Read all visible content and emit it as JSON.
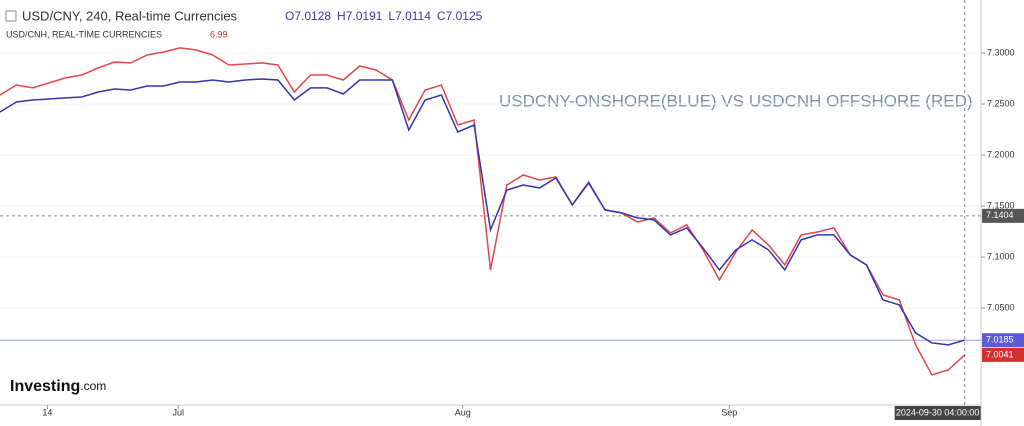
{
  "chart_data": {
    "type": "line",
    "title": "USDCNY-ONSHORE(BLUE) VS USDCNH OFFSHORE (RED)",
    "ohlc": [
      "O7.0128",
      "H7.0191",
      "L7.0114",
      "C7.0125"
    ],
    "secondary_value": "6.99",
    "logo": "Investing",
    "logo_suffix": ".com",
    "crosshair": {
      "x_label": "2024-09-30 04:00:00",
      "y": {
        "value": 7.1404,
        "label": "7.1404"
      }
    },
    "x": [
      0,
      1,
      2,
      3,
      4,
      5,
      6,
      7,
      8,
      9,
      10,
      11,
      12,
      13,
      14,
      15,
      16,
      17,
      18,
      19,
      20,
      21,
      22,
      23,
      24,
      25,
      26,
      27,
      28,
      29,
      30,
      31,
      32,
      33,
      34,
      35,
      36,
      37,
      38,
      39,
      40,
      41,
      42,
      43,
      44,
      45,
      46,
      47,
      48,
      49,
      50,
      51,
      52,
      53,
      54,
      55,
      56,
      57,
      58,
      59
    ],
    "xlim": [
      0,
      60
    ],
    "xticks": [
      {
        "value": 2.9,
        "label": "14"
      },
      {
        "value": 10.9,
        "label": "Jul"
      },
      {
        "value": 28.3,
        "label": "Aug"
      },
      {
        "value": 44.6,
        "label": "Sep"
      }
    ],
    "ylim": [
      6.955,
      7.352
    ],
    "yticks": [
      {
        "value": 7.05,
        "label": "7.0500"
      },
      {
        "value": 7.1,
        "label": "7.1000"
      },
      {
        "value": 7.15,
        "label": "7.1500"
      },
      {
        "value": 7.2,
        "label": "7.2000"
      },
      {
        "value": 7.25,
        "label": "7.2500"
      },
      {
        "value": 7.3,
        "label": "7.3000"
      }
    ],
    "series": [
      {
        "name": "USD/CNY, 240, Real-time Currencies",
        "color": "#3434b0",
        "last_label": "7.0185",
        "values": [
          7.2422,
          7.252,
          7.254,
          7.255,
          7.256,
          7.2569,
          7.2618,
          7.2648,
          7.2638,
          7.2677,
          7.2677,
          7.2716,
          7.2716,
          7.2736,
          7.2716,
          7.2736,
          7.2746,
          7.2736,
          7.254,
          7.2658,
          7.2658,
          7.2599,
          7.2736,
          7.2736,
          7.2736,
          7.2246,
          7.254,
          7.2589,
          7.2226,
          7.2295,
          7.1266,
          7.1658,
          7.1707,
          7.1678,
          7.1776,
          7.1511,
          7.1727,
          7.1462,
          7.1433,
          7.1384,
          7.1364,
          7.1217,
          7.1286,
          7.109,
          7.0874,
          7.107,
          7.1168,
          7.107,
          7.0874,
          7.1168,
          7.1217,
          7.1217,
          7.1021,
          7.0923,
          7.058,
          7.0531,
          7.0257,
          7.0159,
          7.0139,
          7.0185
        ]
      },
      {
        "name": "USD/CNH, REAL-TIME CURRENCIES",
        "color": "#e0474c",
        "last_label": "7.0041",
        "values": [
          7.2589,
          7.2687,
          7.2658,
          7.2707,
          7.2756,
          7.2785,
          7.2854,
          7.2912,
          7.2903,
          7.2981,
          7.301,
          7.305,
          7.303,
          7.2981,
          7.2883,
          7.2893,
          7.2903,
          7.2883,
          7.2618,
          7.2785,
          7.2785,
          7.2736,
          7.2873,
          7.2834,
          7.2736,
          7.2344,
          7.2638,
          7.2687,
          7.2295,
          7.2344,
          7.0874,
          7.1707,
          7.1805,
          7.1756,
          7.1785,
          7.1511,
          7.1736,
          7.1462,
          7.1433,
          7.1344,
          7.1384,
          7.1237,
          7.1315,
          7.107,
          7.0776,
          7.105,
          7.1266,
          7.1119,
          7.0923,
          7.1217,
          7.1246,
          7.1286,
          7.1021,
          7.0923,
          7.0629,
          7.058,
          7.0139,
          6.9845,
          6.9894,
          7.0041
        ]
      }
    ]
  }
}
